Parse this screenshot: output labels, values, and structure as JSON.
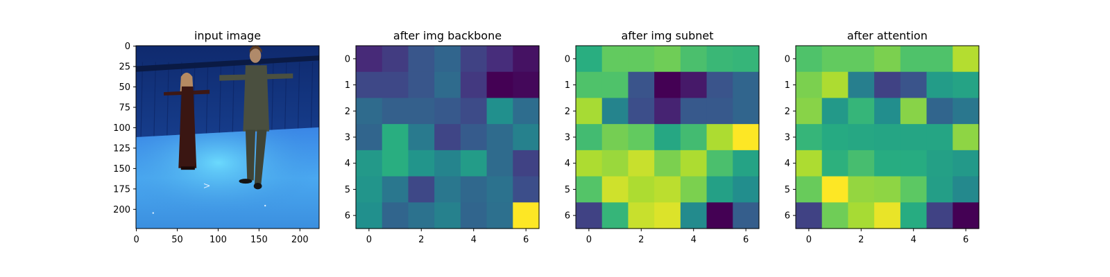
{
  "chart_data": [
    {
      "type": "image",
      "title": "input image",
      "xlim": [
        0,
        224
      ],
      "ylim": [
        224,
        0
      ],
      "x_ticks": [
        0,
        50,
        100,
        150,
        200
      ],
      "y_ticks": [
        0,
        25,
        50,
        75,
        100,
        125,
        150,
        175,
        200
      ],
      "scene": {
        "background": "blue motion-capture studio with two people standing in T-pose",
        "annotations": [
          ">"
        ]
      }
    },
    {
      "type": "heatmap",
      "title": "after img backbone",
      "colormap": "viridis",
      "x_ticks": [
        0,
        2,
        4,
        6
      ],
      "y_ticks": [
        0,
        1,
        2,
        3,
        4,
        5,
        6
      ],
      "values": [
        [
          0.12,
          0.18,
          0.27,
          0.33,
          0.2,
          0.13,
          0.05
        ],
        [
          0.22,
          0.22,
          0.27,
          0.35,
          0.17,
          0.0,
          0.02
        ],
        [
          0.35,
          0.31,
          0.31,
          0.28,
          0.23,
          0.5,
          0.36
        ],
        [
          0.33,
          0.63,
          0.41,
          0.21,
          0.29,
          0.35,
          0.44
        ],
        [
          0.54,
          0.63,
          0.52,
          0.45,
          0.55,
          0.35,
          0.2
        ],
        [
          0.52,
          0.4,
          0.22,
          0.4,
          0.34,
          0.38,
          0.24
        ],
        [
          0.5,
          0.33,
          0.38,
          0.44,
          0.33,
          0.37,
          1.0
        ]
      ]
    },
    {
      "type": "heatmap",
      "title": "after img subnet",
      "colormap": "viridis",
      "x_ticks": [
        0,
        2,
        4,
        6
      ],
      "y_ticks": [
        0,
        1,
        2,
        3,
        4,
        5,
        6
      ],
      "values": [
        [
          0.63,
          0.76,
          0.76,
          0.78,
          0.71,
          0.67,
          0.66
        ],
        [
          0.72,
          0.72,
          0.26,
          0.0,
          0.07,
          0.26,
          0.33
        ],
        [
          0.87,
          0.45,
          0.24,
          0.1,
          0.28,
          0.28,
          0.33
        ],
        [
          0.69,
          0.79,
          0.76,
          0.6,
          0.69,
          0.88,
          1.0
        ],
        [
          0.88,
          0.85,
          0.92,
          0.8,
          0.88,
          0.71,
          0.58
        ],
        [
          0.73,
          0.93,
          0.88,
          0.9,
          0.8,
          0.57,
          0.49
        ],
        [
          0.2,
          0.66,
          0.92,
          0.95,
          0.48,
          0.0,
          0.3
        ]
      ]
    },
    {
      "type": "heatmap",
      "title": "after attention",
      "colormap": "viridis",
      "x_ticks": [
        0,
        2,
        4,
        6
      ],
      "y_ticks": [
        0,
        1,
        2,
        3,
        4,
        5,
        6
      ],
      "values": [
        [
          0.72,
          0.76,
          0.76,
          0.8,
          0.72,
          0.72,
          0.89
        ],
        [
          0.8,
          0.88,
          0.43,
          0.2,
          0.26,
          0.55,
          0.58
        ],
        [
          0.82,
          0.54,
          0.66,
          0.49,
          0.82,
          0.33,
          0.4
        ],
        [
          0.66,
          0.61,
          0.6,
          0.59,
          0.59,
          0.59,
          0.83
        ],
        [
          0.88,
          0.64,
          0.7,
          0.62,
          0.62,
          0.57,
          0.54
        ],
        [
          0.77,
          1.0,
          0.84,
          0.83,
          0.75,
          0.56,
          0.47
        ],
        [
          0.2,
          0.78,
          0.87,
          0.97,
          0.62,
          0.2,
          0.0
        ]
      ]
    }
  ]
}
